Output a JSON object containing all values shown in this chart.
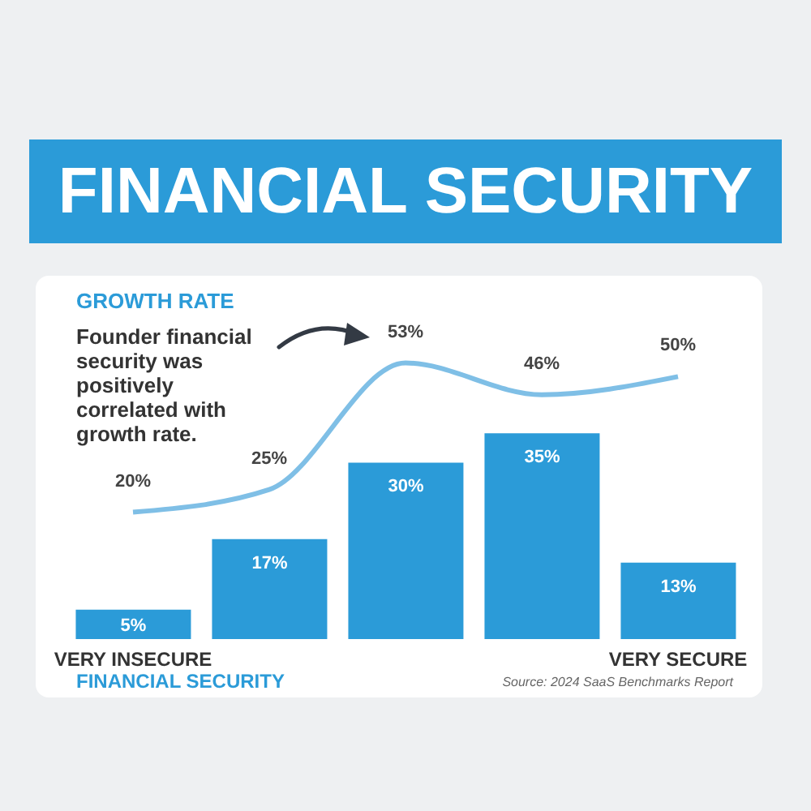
{
  "chart_data": {
    "type": "bar",
    "title": "FINANCIAL SECURITY",
    "xlabel": "FINANCIAL SECURITY",
    "categories": [
      "VERY INSECURE",
      null,
      null,
      null,
      "VERY SECURE"
    ],
    "series": [
      {
        "color": "#2b9bd8",
        "values": [
          5,
          17,
          30,
          35,
          13
        ],
        "value_labels": [
          "5%",
          "17%",
          "30%",
          "35%",
          "13%"
        ]
      },
      {
        "type": "line",
        "name": "GROWTH RATE",
        "axis": "y2",
        "color": "#7fbfe6",
        "values": [
          20,
          25,
          53,
          46,
          50
        ],
        "value_labels": [
          "20%",
          "25%",
          "53%",
          "46%",
          "50%"
        ]
      }
    ],
    "annotations": [
      "Founder financial security was positively correlated with growth rate.",
      "Source: 2024 SaaS Benchmarks Report"
    ],
    "marker": "none"
  }
}
